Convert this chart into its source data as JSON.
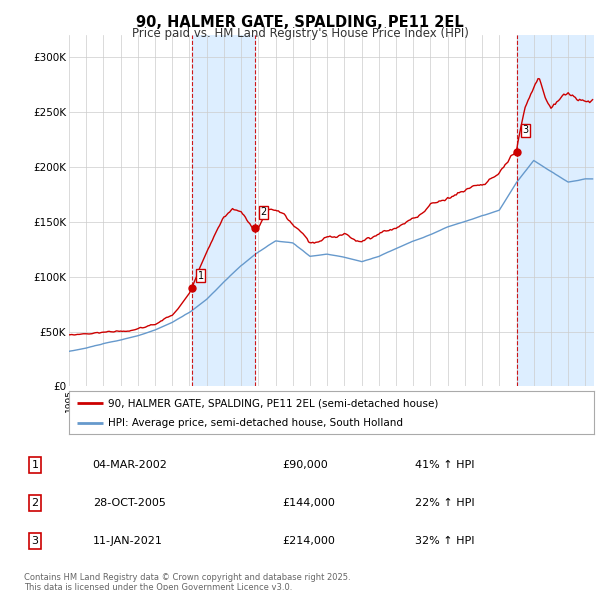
{
  "title": "90, HALMER GATE, SPALDING, PE11 2EL",
  "subtitle": "Price paid vs. HM Land Registry's House Price Index (HPI)",
  "hpi_label": "HPI: Average price, semi-detached house, South Holland",
  "property_label": "90, HALMER GATE, SPALDING, PE11 2EL (semi-detached house)",
  "footer": "Contains HM Land Registry data © Crown copyright and database right 2025.\nThis data is licensed under the Open Government Licence v3.0.",
  "transactions": [
    {
      "num": 1,
      "date": "04-MAR-2002",
      "price": 90000,
      "pct": "41%",
      "dir": "↑",
      "year_x": 2002.17
    },
    {
      "num": 2,
      "date": "28-OCT-2005",
      "price": 144000,
      "pct": "22%",
      "dir": "↑",
      "year_x": 2005.82
    },
    {
      "num": 3,
      "date": "11-JAN-2021",
      "price": 214000,
      "pct": "32%",
      "dir": "↑",
      "year_x": 2021.03
    }
  ],
  "property_color": "#cc0000",
  "hpi_color": "#6699cc",
  "span_color": "#ddeeff",
  "vline_color": "#cc0000",
  "ylim": [
    0,
    320000
  ],
  "xlim_start": 1995.0,
  "xlim_end": 2025.5,
  "yticks": [
    0,
    50000,
    100000,
    150000,
    200000,
    250000,
    300000
  ],
  "ytick_labels": [
    "£0",
    "£50K",
    "£100K",
    "£150K",
    "£200K",
    "£250K",
    "£300K"
  ],
  "xticks": [
    1995,
    1996,
    1997,
    1998,
    1999,
    2000,
    2001,
    2002,
    2003,
    2004,
    2005,
    2006,
    2007,
    2008,
    2009,
    2010,
    2011,
    2012,
    2013,
    2014,
    2015,
    2016,
    2017,
    2018,
    2019,
    2020,
    2021,
    2022,
    2023,
    2024,
    2025
  ],
  "background_color": "#ffffff",
  "grid_color": "#cccccc",
  "hpi_base_values": {
    "1995": 32000,
    "1996": 35000,
    "1997": 39000,
    "1998": 42000,
    "1999": 46000,
    "2000": 51000,
    "2001": 58000,
    "2002": 67000,
    "2003": 79000,
    "2004": 95000,
    "2005": 110000,
    "2006": 122000,
    "2007": 132000,
    "2008": 130000,
    "2009": 118000,
    "2010": 120000,
    "2011": 117000,
    "2012": 113000,
    "2013": 118000,
    "2014": 125000,
    "2015": 132000,
    "2016": 138000,
    "2017": 145000,
    "2018": 150000,
    "2019": 155000,
    "2020": 160000,
    "2021": 185000,
    "2022": 205000,
    "2023": 195000,
    "2024": 185000,
    "2025": 188000
  },
  "prop_base_values": {
    "1995.0": 47000,
    "1996.0": 48500,
    "1997.0": 50000,
    "1998.0": 51500,
    "1999.0": 53000,
    "2000.0": 57000,
    "2001.0": 65000,
    "2002.0": 85000,
    "2002.17": 90000,
    "2003.0": 125000,
    "2004.0": 158000,
    "2004.5": 165000,
    "2005.0": 162000,
    "2005.82": 144000,
    "2006.0": 148000,
    "2006.5": 163000,
    "2007.0": 163000,
    "2007.5": 158000,
    "2008.0": 148000,
    "2008.5": 140000,
    "2009.0": 130000,
    "2009.5": 130000,
    "2010.0": 133000,
    "2010.5": 132000,
    "2011.0": 136000,
    "2011.5": 133000,
    "2012.0": 130000,
    "2012.5": 132000,
    "2013.0": 137000,
    "2014.0": 143000,
    "2015.0": 153000,
    "2016.0": 163000,
    "2017.0": 172000,
    "2018.0": 178000,
    "2018.5": 183000,
    "2019.0": 185000,
    "2019.5": 190000,
    "2020.0": 195000,
    "2020.5": 200000,
    "2021.0": 210000,
    "2021.03": 214000,
    "2021.5": 245000,
    "2022.0": 260000,
    "2022.3": 268000,
    "2022.7": 250000,
    "2023.0": 243000,
    "2023.5": 250000,
    "2024.0": 255000,
    "2024.5": 248000,
    "2025.0": 248000
  }
}
